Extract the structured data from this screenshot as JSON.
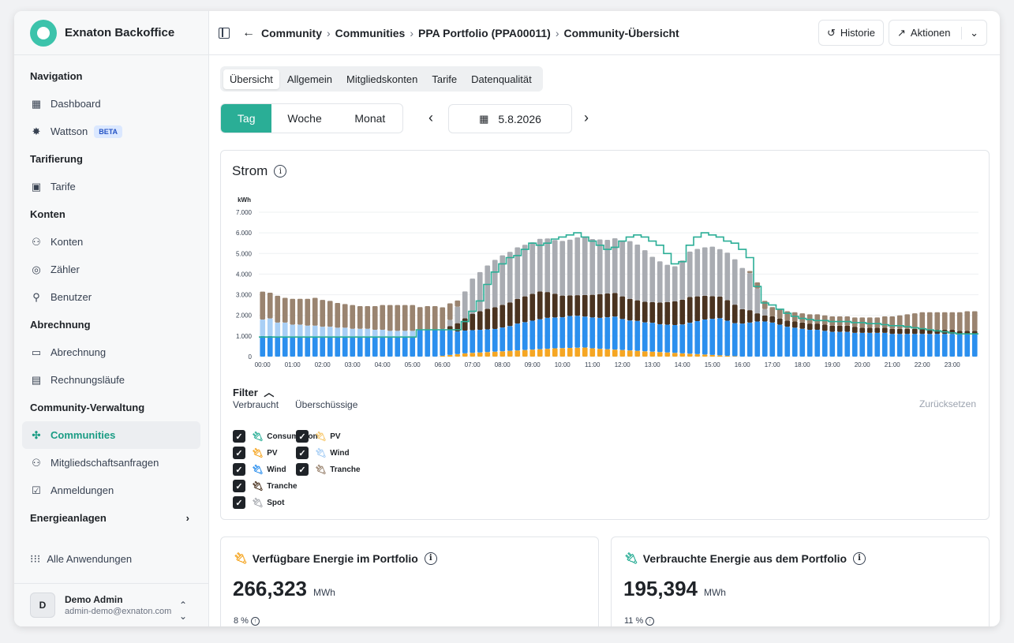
{
  "app": {
    "name": "Exnaton Backoffice"
  },
  "sidebar": {
    "sections": [
      {
        "title": "Navigation",
        "items": [
          {
            "label": "Dashboard",
            "icon": "dashboard-icon"
          },
          {
            "label": "Wattson",
            "icon": "sparkle-icon",
            "badge": "BETA"
          }
        ]
      },
      {
        "title": "Tarifierung",
        "items": [
          {
            "label": "Tarife",
            "icon": "tariff-icon"
          }
        ]
      },
      {
        "title": "Konten",
        "items": [
          {
            "label": "Konten",
            "icon": "accounts-icon"
          },
          {
            "label": "Zähler",
            "icon": "meter-icon"
          },
          {
            "label": "Benutzer",
            "icon": "user-icon"
          }
        ]
      },
      {
        "title": "Abrechnung",
        "items": [
          {
            "label": "Abrechnung",
            "icon": "billing-icon"
          },
          {
            "label": "Rechnungsläufe",
            "icon": "invoice-runs-icon"
          }
        ]
      },
      {
        "title": "Community-Verwaltung",
        "items": [
          {
            "label": "Communities",
            "icon": "network-icon",
            "active": true
          },
          {
            "label": "Mitgliedschaftsanfragen",
            "icon": "requests-icon"
          },
          {
            "label": "Anmeldungen",
            "icon": "registrations-icon"
          }
        ]
      }
    ],
    "energie": "Energieanlagen",
    "all_apps": "Alle Anwendungen",
    "user": {
      "initial": "D",
      "name": "Demo Admin",
      "email": "admin-demo@exnaton.com"
    }
  },
  "header": {
    "breadcrumb": [
      "Community",
      "Communities",
      "PPA Portfolio (PPA00011)",
      "Community-Übersicht"
    ],
    "historie": "Historie",
    "aktionen": "Aktionen"
  },
  "tabs": [
    "Übersicht",
    "Allgemein",
    "Mitgliedskonten",
    "Tarife",
    "Datenqualität"
  ],
  "period": {
    "options": [
      "Tag",
      "Woche",
      "Monat"
    ],
    "selected": "Tag",
    "date": "5.8.2026"
  },
  "strom": {
    "title": "Strom",
    "filter": {
      "label": "Filter",
      "reset": "Zurücksetzen",
      "col1": {
        "title": "Verbraucht",
        "items": [
          "Consumption",
          "PV",
          "Wind",
          "Tranche",
          "Spot"
        ]
      },
      "col2": {
        "title": "Überschüssige",
        "items": [
          "PV",
          "Wind",
          "Tranche"
        ]
      }
    }
  },
  "kpis": [
    {
      "title": "Verfügbare Energie im Portfolio",
      "value": "266,323",
      "unit": "MWh",
      "pct": "8 %"
    },
    {
      "title": "Verbrauchte Energie aus dem Portfolio",
      "value": "195,394",
      "unit": "MWh",
      "pct": "11 %"
    }
  ],
  "colors": {
    "accent": "#2aae96",
    "pv": "#f5a623",
    "wind": "#2b8fee",
    "wind_light": "#a9cff5",
    "tranche": "#4a3320",
    "tranche_surplus": "#9a8470",
    "spot": "#a9acb2",
    "line": "#2aae96"
  },
  "chart_data": {
    "type": "bar",
    "ylabel": "kWh",
    "ylim": [
      0,
      7000
    ],
    "yticks": [
      "0",
      "1.000",
      "2.000",
      "3.000",
      "4.000",
      "5.000",
      "6.000",
      "7.000"
    ],
    "xticks": [
      "00:00",
      "01:00",
      "02:00",
      "03:00",
      "04:00",
      "05:00",
      "06:00",
      "07:00",
      "08:00",
      "09:00",
      "10:00",
      "11:00",
      "12:00",
      "13:00",
      "14:00",
      "15:00",
      "16:00",
      "17:00",
      "18:00",
      "19:00",
      "20:00",
      "21:00",
      "22:00",
      "23:00"
    ],
    "note": "Stacked bars per 15 minutes; series: PV, Wind, Tranche, Spot, Surplus Wind, Surplus Tranche; line: Consumption",
    "series": [
      {
        "name": "PV",
        "values": [
          0,
          0,
          0,
          0,
          0,
          0,
          0,
          0,
          0,
          0,
          0,
          0,
          0,
          0,
          0,
          0,
          0,
          0,
          0,
          0,
          0,
          0,
          0,
          0,
          40,
          80,
          120,
          160,
          180,
          200,
          220,
          240,
          260,
          280,
          300,
          320,
          340,
          360,
          380,
          400,
          410,
          420,
          430,
          440,
          400,
          380,
          360,
          340,
          320,
          300,
          280,
          260,
          240,
          220,
          200,
          180,
          160,
          140,
          120,
          100,
          80,
          60,
          40,
          20,
          0,
          0,
          0,
          0,
          0,
          0,
          0,
          0,
          0,
          0,
          0,
          0,
          0,
          0,
          0,
          0,
          0,
          0,
          0,
          0,
          0,
          0,
          0,
          0,
          0,
          0,
          0,
          0,
          0,
          0,
          0,
          0
        ]
      },
      {
        "name": "Wind",
        "values": [
          1000,
          1000,
          950,
          950,
          950,
          950,
          950,
          950,
          950,
          950,
          950,
          950,
          950,
          950,
          950,
          950,
          950,
          950,
          950,
          950,
          950,
          1300,
          1300,
          1300,
          1300,
          1200,
          1100,
          1100,
          1100,
          1100,
          1100,
          1100,
          1150,
          1200,
          1300,
          1350,
          1400,
          1450,
          1500,
          1500,
          1500,
          1550,
          1550,
          1500,
          1500,
          1500,
          1550,
          1600,
          1500,
          1450,
          1450,
          1400,
          1400,
          1350,
          1350,
          1350,
          1400,
          1500,
          1600,
          1700,
          1750,
          1800,
          1700,
          1600,
          1600,
          1650,
          1700,
          1700,
          1650,
          1550,
          1450,
          1400,
          1350,
          1300,
          1300,
          1250,
          1200,
          1200,
          1200,
          1150,
          1150,
          1150,
          1150,
          1150,
          1100,
          1100,
          1100,
          1100,
          1100,
          1100,
          1100,
          1100,
          1100,
          1100,
          1100,
          1100
        ]
      },
      {
        "name": "Tranche",
        "values": [
          0,
          0,
          0,
          0,
          0,
          0,
          0,
          0,
          0,
          0,
          0,
          0,
          0,
          0,
          0,
          0,
          0,
          0,
          0,
          0,
          0,
          0,
          0,
          0,
          0,
          200,
          400,
          600,
          800,
          900,
          1000,
          1050,
          1100,
          1150,
          1200,
          1250,
          1300,
          1350,
          1250,
          1150,
          1050,
          1000,
          1000,
          1050,
          1100,
          1150,
          1150,
          1150,
          1100,
          1050,
          1000,
          1000,
          1000,
          1050,
          1100,
          1150,
          1200,
          1250,
          1200,
          1150,
          1100,
          1050,
          1000,
          900,
          700,
          600,
          400,
          300,
          300,
          300,
          300,
          300,
          300,
          300,
          300,
          300,
          300,
          300,
          300,
          300,
          250,
          250,
          250,
          250,
          250,
          250,
          250,
          250,
          250,
          200,
          200,
          200,
          200,
          150,
          150,
          150
        ]
      },
      {
        "name": "Spot",
        "values": [
          0,
          0,
          0,
          0,
          0,
          0,
          0,
          0,
          0,
          0,
          0,
          0,
          0,
          0,
          0,
          0,
          0,
          0,
          0,
          0,
          0,
          0,
          0,
          0,
          0,
          300,
          800,
          1300,
          1700,
          1900,
          2100,
          2300,
          2400,
          2450,
          2500,
          2500,
          2500,
          2550,
          2600,
          2600,
          2650,
          2700,
          2800,
          2800,
          2700,
          2650,
          2600,
          2650,
          2700,
          2800,
          2700,
          2500,
          2200,
          2000,
          1800,
          1700,
          1900,
          2200,
          2300,
          2350,
          2400,
          2300,
          2300,
          2200,
          2000,
          1800,
          1200,
          300,
          0,
          0,
          0,
          0,
          0,
          0,
          0,
          0,
          0,
          0,
          0,
          0,
          0,
          0,
          0,
          0,
          0,
          0,
          0,
          0,
          0,
          0,
          0,
          0,
          0,
          0,
          0,
          0
        ]
      },
      {
        "name": "Surplus Wind",
        "values": [
          800,
          850,
          700,
          700,
          600,
          600,
          550,
          550,
          500,
          500,
          450,
          450,
          400,
          400,
          400,
          350,
          350,
          300,
          300,
          300,
          300,
          0,
          0,
          0,
          0,
          0,
          0,
          0,
          0,
          0,
          0,
          0,
          0,
          0,
          0,
          0,
          0,
          0,
          0,
          0,
          0,
          0,
          0,
          0,
          0,
          0,
          0,
          0,
          0,
          0,
          0,
          0,
          0,
          0,
          0,
          0,
          0,
          0,
          0,
          0,
          0,
          0,
          0,
          0,
          0,
          0,
          0,
          0,
          0,
          0,
          0,
          0,
          0,
          0,
          0,
          0,
          0,
          0,
          0,
          0,
          0,
          0,
          0,
          0,
          0,
          0,
          0,
          0,
          0,
          0,
          0,
          0,
          0,
          0,
          0,
          0
        ]
      },
      {
        "name": "Surplus Tranche",
        "values": [
          1350,
          1250,
          1300,
          1200,
          1250,
          1250,
          1300,
          1350,
          1300,
          1250,
          1200,
          1150,
          1150,
          1100,
          1100,
          1150,
          1200,
          1250,
          1250,
          1250,
          1250,
          1100,
          1150,
          1150,
          1050,
          800,
          300,
          0,
          0,
          0,
          0,
          0,
          0,
          0,
          0,
          0,
          0,
          0,
          0,
          0,
          0,
          0,
          0,
          0,
          0,
          0,
          0,
          0,
          0,
          0,
          0,
          0,
          0,
          0,
          0,
          0,
          0,
          0,
          0,
          0,
          0,
          0,
          0,
          0,
          0,
          100,
          300,
          400,
          450,
          450,
          450,
          450,
          450,
          450,
          450,
          450,
          450,
          450,
          450,
          450,
          500,
          500,
          500,
          550,
          600,
          650,
          700,
          750,
          800,
          850,
          850,
          850,
          850,
          900,
          950,
          950
        ]
      }
    ],
    "line": {
      "name": "Consumption",
      "values": [
        950,
        950,
        950,
        950,
        950,
        950,
        950,
        950,
        950,
        950,
        950,
        950,
        950,
        950,
        950,
        950,
        950,
        950,
        950,
        950,
        950,
        1300,
        1300,
        1300,
        1300,
        1300,
        1300,
        1700,
        2200,
        2700,
        3500,
        4100,
        4500,
        4800,
        4900,
        5200,
        5500,
        5400,
        5500,
        5700,
        5800,
        5900,
        6000,
        5800,
        5600,
        5400,
        5200,
        5300,
        5600,
        5800,
        5900,
        5800,
        5600,
        5400,
        5000,
        4500,
        4600,
        5400,
        5800,
        6000,
        5900,
        5800,
        5600,
        5500,
        5200,
        4800,
        3400,
        2600,
        2500,
        2300,
        2100,
        1950,
        1850,
        1800,
        1750,
        1750,
        1700,
        1700,
        1700,
        1650,
        1650,
        1600,
        1600,
        1550,
        1500,
        1500,
        1450,
        1400,
        1350,
        1300,
        1250,
        1200,
        1150,
        1100,
        1100,
        1100
      ]
    }
  }
}
